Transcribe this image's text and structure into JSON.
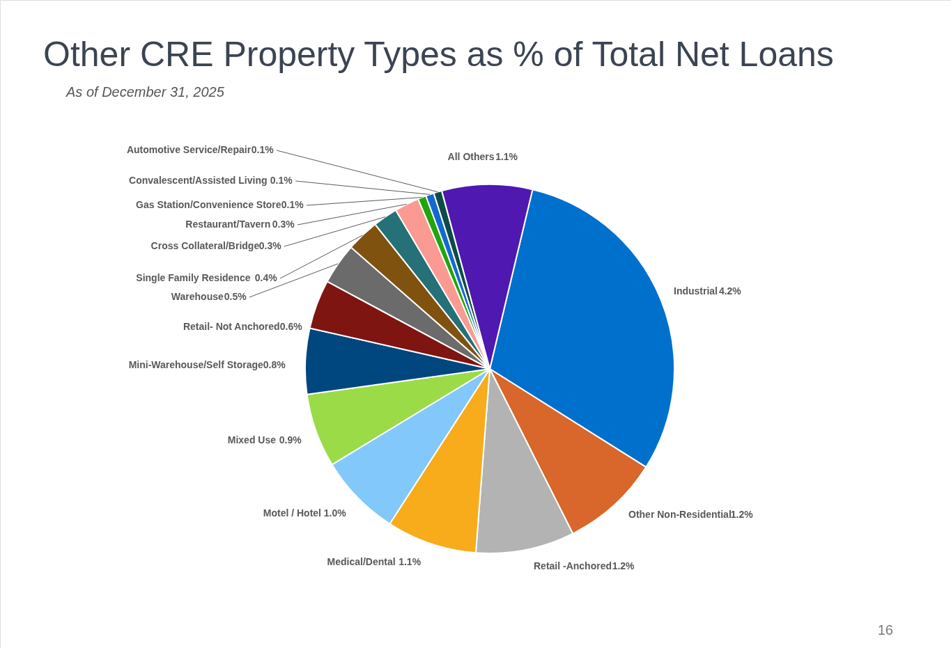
{
  "chart_data": {
    "type": "pie",
    "title": "Other CRE Property Types as % of Total Net Loans",
    "subtitle": "As of December 31, 2025",
    "categories": [
      "Industrial",
      "Other Non-Residential",
      "Retail -Anchored",
      "Medical/Dental",
      "Motel / Hotel",
      "Mixed Use",
      "Mini-Warehouse/Self Storage",
      "Retail- Not Anchored",
      "Warehouse",
      "Single Family Residence",
      "Cross Collateral/Bridge",
      "Restaurant/Tavern",
      "Gas Station/Convenience Store",
      "Convalescent/Assisted Living",
      "Automotive Service/Repair",
      "All Others"
    ],
    "values": [
      4.2,
      1.2,
      1.2,
      1.1,
      1.0,
      0.9,
      0.8,
      0.6,
      0.5,
      0.4,
      0.3,
      0.3,
      0.1,
      0.1,
      0.1,
      1.1
    ],
    "value_labels": [
      "4.2%",
      "1.2%",
      "1.2%",
      "1.1%",
      "1.0%",
      "0.9%",
      "0.8%",
      "0.6%",
      "0.5%",
      "0.4%",
      "0.3%",
      "0.3%",
      "0.1%",
      "0.1%",
      "0.1%",
      "1.1%"
    ],
    "colors": [
      "#0070cd",
      "#d9662b",
      "#b3b3b3",
      "#f8ab1b",
      "#82c8fb",
      "#9cdb48",
      "#00467f",
      "#7f1510",
      "#6b6b6b",
      "#7f530f",
      "#267077",
      "#fb9a92",
      "#21a40c",
      "#1469cf",
      "#0e4c46",
      "#4f18b0"
    ],
    "annotations": [
      "16"
    ]
  }
}
